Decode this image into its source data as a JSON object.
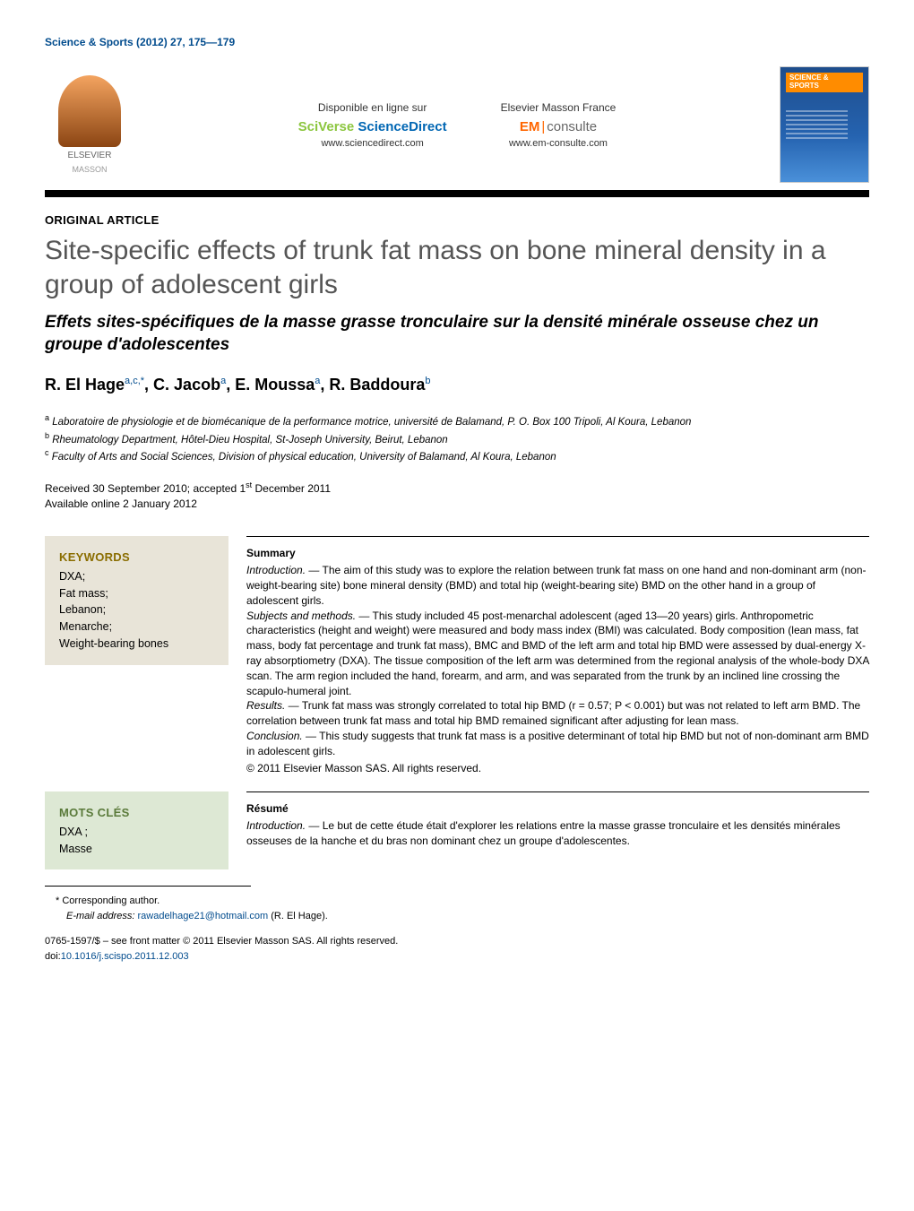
{
  "citation": "Science & Sports (2012) 27, 175—179",
  "banner": {
    "elsevier": "ELSEVIER",
    "masson": "MASSON",
    "sciverse_label": "Disponible en ligne sur",
    "sciverse_brand_sv": "SciVerse",
    "sciverse_brand_sd": " ScienceDirect",
    "sciverse_url": "www.sciencedirect.com",
    "em_label": "Elsevier Masson France",
    "em_brand_em": "EM",
    "em_brand_consulte": "consulte",
    "em_url": "www.em-consulte.com",
    "journal_cover_title": "SCIENCE & SPORTS"
  },
  "article_type": "ORIGINAL ARTICLE",
  "title_en": "Site-specific effects of trunk fat mass on bone mineral density in a group of adolescent girls",
  "title_fr": "Effets sites-spécifiques de la masse grasse tronculaire sur la densité minérale osseuse chez un groupe d'adolescentes",
  "authors_html": "R. El Hage<sup>a,c,*</sup>, C. Jacob<sup>a</sup>, E. Moussa<sup>a</sup>, R. Baddoura<sup>b</sup>",
  "affiliations": {
    "a": "Laboratoire de physiologie et de biomécanique de la performance motrice, université de Balamand, P. O. Box 100 Tripoli, Al Koura, Lebanon",
    "b": "Rheumatology Department, Hôtel-Dieu Hospital, St-Joseph University, Beirut, Lebanon",
    "c": "Faculty of Arts and Social Sciences, Division of physical education, University of Balamand, Al Koura, Lebanon"
  },
  "dates": {
    "received_accepted": "Received 30 September 2010; accepted 1<sup>st</sup> December 2011",
    "online": "Available online 2 January 2012"
  },
  "keywords_en": {
    "title": "KEYWORDS",
    "items": [
      "DXA;",
      "Fat mass;",
      "Lebanon;",
      "Menarche;",
      "Weight-bearing bones"
    ]
  },
  "summary": {
    "title": "Summary",
    "intro_label": "Introduction. —",
    "intro": "The aim of this study was to explore the relation between trunk fat mass on one hand and non-dominant arm (non-weight-bearing site) bone mineral density (BMD) and total hip (weight-bearing site) BMD on the other hand in a group of adolescent girls.",
    "subjects_label": "Subjects and methods. —",
    "subjects": "This study included 45 post-menarchal adolescent (aged 13—20 years) girls. Anthropometric characteristics (height and weight) were measured and body mass index (BMI) was calculated. Body composition (lean mass, fat mass, body fat percentage and trunk fat mass), BMC and BMD of the left arm and total hip BMD were assessed by dual-energy X-ray absorptiometry (DXA). The tissue composition of the left arm was determined from the regional analysis of the whole-body DXA scan. The arm region included the hand, forearm, and arm, and was separated from the trunk by an inclined line crossing the scapulo-humeral joint.",
    "results_label": "Results. —",
    "results": "Trunk fat mass was strongly correlated to total hip BMD (r = 0.57; P < 0.001) but was not related to left arm BMD. The correlation between trunk fat mass and total hip BMD remained significant after adjusting for lean mass.",
    "conclusion_label": "Conclusion. —",
    "conclusion": "This study suggests that trunk fat mass is a positive determinant of total hip BMD but not of non-dominant arm BMD in adolescent girls.",
    "copyright": "© 2011 Elsevier Masson SAS. All rights reserved."
  },
  "keywords_fr": {
    "title": "MOTS CLÉS",
    "items": [
      "DXA ;",
      "Masse"
    ]
  },
  "resume": {
    "title": "Résumé",
    "intro_label": "Introduction. —",
    "intro": "Le but de cette étude était d'explorer les relations entre la masse grasse tronculaire et les densités minérales osseuses de la hanche et du bras non dominant chez un groupe d'adolescentes."
  },
  "footer": {
    "corr_marker": "*",
    "corr_text": "Corresponding author.",
    "email_label": "E-mail address:",
    "email": "rawadelhage21@hotmail.com",
    "email_author": "(R. El Hage).",
    "issn_line": "0765-1597/$ – see front matter © 2011 Elsevier Masson SAS. All rights reserved.",
    "doi_label": "doi:",
    "doi": "10.1016/j.scispo.2011.12.003"
  },
  "colors": {
    "link_blue": "#004b8d",
    "title_gray": "#555555",
    "kw_box_bg": "#e8e4d8",
    "kw_box_green_bg": "#dde8d4",
    "kw_title_color": "#8a6d00",
    "kw_title_green_color": "#5a7a3a",
    "black": "#000000",
    "white": "#ffffff"
  }
}
